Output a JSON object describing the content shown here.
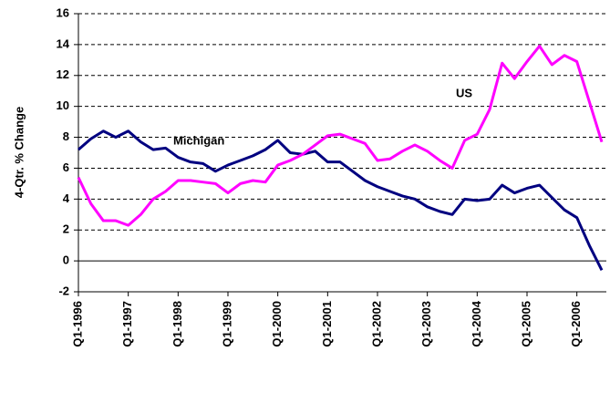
{
  "chart_data": {
    "type": "line",
    "y_label": "4-Qtr. % Change",
    "categories": [
      "Q1-1996",
      null,
      null,
      null,
      "Q1-1997",
      null,
      null,
      null,
      "Q1-1998",
      null,
      null,
      null,
      "Q1-1999",
      null,
      null,
      null,
      "Q1-2000",
      null,
      null,
      null,
      "Q1-2001",
      null,
      null,
      null,
      "Q1-2002",
      null,
      null,
      null,
      "Q1-2003",
      null,
      null,
      null,
      "Q1-2004",
      null,
      null,
      null,
      "Q1-2005",
      null,
      null,
      null,
      "Q1-2006",
      null,
      null
    ],
    "series": [
      {
        "name": "Michigan",
        "color": "#000080",
        "values": [
          7.2,
          7.9,
          8.4,
          8.0,
          8.4,
          7.7,
          7.2,
          7.3,
          6.7,
          6.4,
          6.3,
          5.8,
          6.2,
          6.5,
          6.8,
          7.2,
          7.8,
          7.0,
          6.9,
          7.1,
          6.4,
          6.4,
          5.8,
          5.2,
          4.8,
          4.5,
          4.2,
          4.0,
          3.5,
          3.2,
          3.0,
          4.0,
          3.9,
          4.0,
          4.9,
          4.4,
          4.7,
          4.9,
          4.1,
          3.3,
          2.8,
          1.0,
          -0.6
        ]
      },
      {
        "name": "US",
        "color": "#ff00ff",
        "values": [
          5.4,
          3.7,
          2.6,
          2.6,
          2.3,
          3.0,
          4.0,
          4.5,
          5.2,
          5.2,
          5.1,
          5.0,
          4.4,
          5.0,
          5.2,
          5.1,
          6.2,
          6.5,
          6.9,
          7.5,
          8.1,
          8.2,
          7.9,
          7.6,
          6.5,
          6.6,
          7.1,
          7.5,
          7.1,
          6.5,
          6.0,
          7.8,
          8.2,
          9.8,
          12.8,
          11.8,
          12.9,
          13.9,
          12.7,
          13.3,
          12.9,
          10.3,
          7.7
        ]
      }
    ],
    "ylim": [
      -2,
      16
    ],
    "yticks": [
      -2,
      0,
      2,
      4,
      6,
      8,
      10,
      12,
      14,
      16
    ],
    "grid": true
  }
}
